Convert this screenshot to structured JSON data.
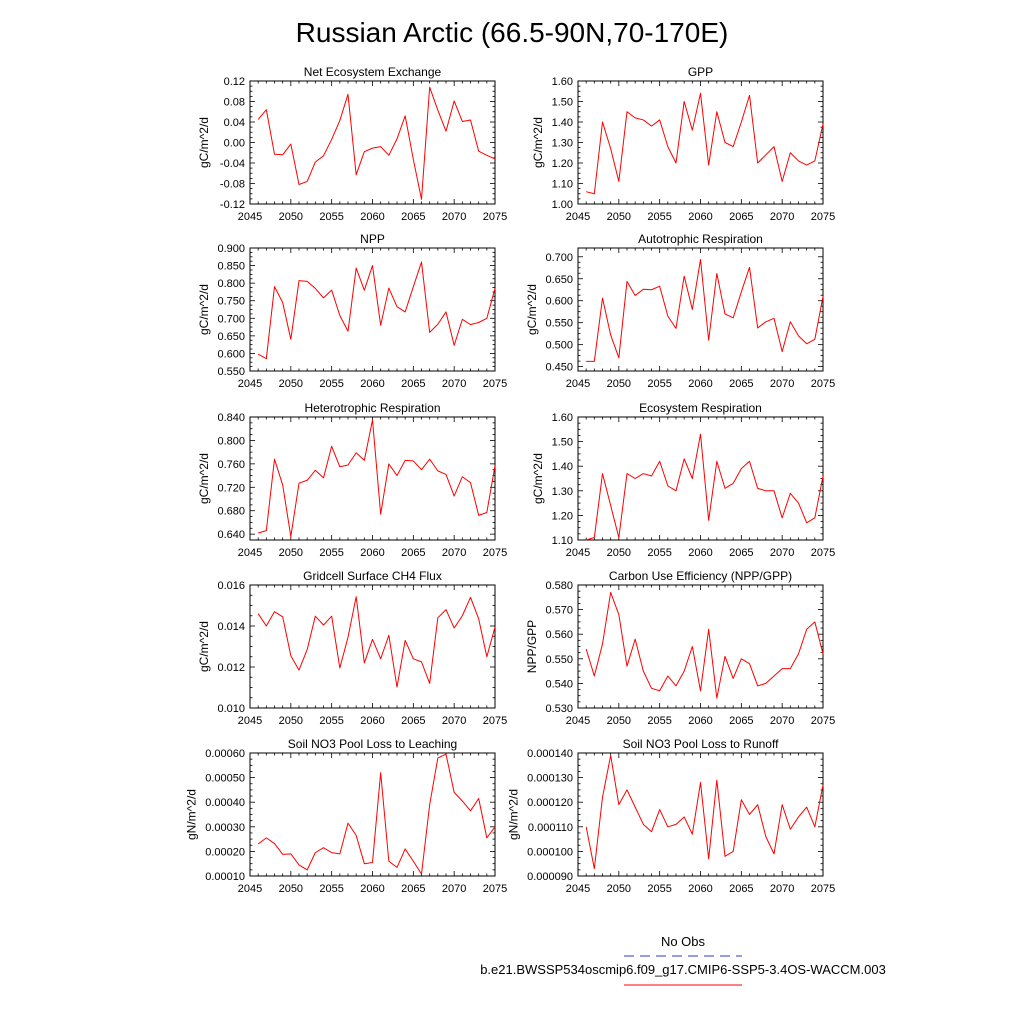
{
  "page_title": "Russian Arctic (66.5-90N,70-170E)",
  "legend": {
    "obs_label": "No Obs",
    "obs_color": "#3333cc",
    "model_label": "b.e21.BWSSP534oscmip6.f09_g17.CMIP6-SSP5-3.4OS-WACCM.003",
    "model_color": "#ff0000"
  },
  "chart_data": [
    {
      "type": "line",
      "title": "Net Ecosystem Exchange",
      "ylabel": "gC/m^2/d",
      "xlim": [
        2045,
        2075
      ],
      "ylim": [
        -0.12,
        0.12
      ],
      "xticks": [
        "2045",
        "2050",
        "2055",
        "2060",
        "2065",
        "2070",
        "2075"
      ],
      "yticks": [
        "-0.12",
        "-0.08",
        "-0.04",
        "0.00",
        "0.04",
        "0.08",
        "0.12"
      ],
      "x": [
        2046,
        2047,
        2048,
        2049,
        2050,
        2051,
        2052,
        2053,
        2054,
        2055,
        2056,
        2057,
        2058,
        2059,
        2060,
        2061,
        2062,
        2063,
        2064,
        2065,
        2066,
        2067,
        2068,
        2069,
        2070,
        2071,
        2072,
        2073,
        2074,
        2075
      ],
      "values": [
        0.045,
        0.064,
        -0.023,
        -0.024,
        -0.003,
        -0.082,
        -0.076,
        -0.038,
        -0.026,
        0.006,
        0.043,
        0.094,
        -0.063,
        -0.018,
        -0.011,
        -0.008,
        -0.025,
        0.007,
        0.052,
        -0.033,
        -0.111,
        0.108,
        0.063,
        0.022,
        0.081,
        0.041,
        0.044,
        -0.017,
        -0.025,
        -0.032
      ],
      "color": "#ff0000"
    },
    {
      "type": "line",
      "title": "GPP",
      "ylabel": "gC/m^2/d",
      "xlim": [
        2045,
        2075
      ],
      "ylim": [
        1.0,
        1.6
      ],
      "xticks": [
        "2045",
        "2050",
        "2055",
        "2060",
        "2065",
        "2070",
        "2075"
      ],
      "yticks": [
        "1.00",
        "1.10",
        "1.20",
        "1.30",
        "1.40",
        "1.50",
        "1.60"
      ],
      "x": [
        2046,
        2047,
        2048,
        2049,
        2050,
        2051,
        2052,
        2053,
        2054,
        2055,
        2056,
        2057,
        2058,
        2059,
        2060,
        2061,
        2062,
        2063,
        2064,
        2065,
        2066,
        2067,
        2068,
        2069,
        2070,
        2071,
        2072,
        2073,
        2074,
        2075
      ],
      "values": [
        1.06,
        1.05,
        1.4,
        1.27,
        1.11,
        1.45,
        1.42,
        1.41,
        1.38,
        1.41,
        1.28,
        1.2,
        1.5,
        1.36,
        1.54,
        1.19,
        1.45,
        1.3,
        1.28,
        1.4,
        1.53,
        1.2,
        1.24,
        1.28,
        1.11,
        1.25,
        1.21,
        1.19,
        1.21,
        1.39
      ],
      "color": "#ff0000"
    },
    {
      "type": "line",
      "title": "NPP",
      "ylabel": "gC/m^2/d",
      "xlim": [
        2045,
        2075
      ],
      "ylim": [
        0.55,
        0.9
      ],
      "xticks": [
        "2045",
        "2050",
        "2055",
        "2060",
        "2065",
        "2070",
        "2075"
      ],
      "yticks": [
        "0.550",
        "0.600",
        "0.650",
        "0.700",
        "0.750",
        "0.800",
        "0.850",
        "0.900"
      ],
      "x": [
        2046,
        2047,
        2048,
        2049,
        2050,
        2051,
        2052,
        2053,
        2054,
        2055,
        2056,
        2057,
        2058,
        2059,
        2060,
        2061,
        2062,
        2063,
        2064,
        2065,
        2066,
        2067,
        2068,
        2069,
        2070,
        2071,
        2072,
        2073,
        2074,
        2075
      ],
      "values": [
        0.598,
        0.585,
        0.79,
        0.745,
        0.64,
        0.807,
        0.805,
        0.785,
        0.758,
        0.78,
        0.708,
        0.663,
        0.843,
        0.78,
        0.85,
        0.68,
        0.786,
        0.733,
        0.718,
        0.79,
        0.86,
        0.66,
        0.683,
        0.718,
        0.623,
        0.697,
        0.682,
        0.688,
        0.7,
        0.785
      ],
      "color": "#ff0000"
    },
    {
      "type": "line",
      "title": "Autotrophic Respiration",
      "ylabel": "gC/m^2/d",
      "xlim": [
        2045,
        2075
      ],
      "ylim": [
        0.44,
        0.72
      ],
      "xticks": [
        "2045",
        "2050",
        "2055",
        "2060",
        "2065",
        "2070",
        "2075"
      ],
      "yticks": [
        "0.450",
        "0.500",
        "0.550",
        "0.600",
        "0.650",
        "0.700"
      ],
      "x": [
        2046,
        2047,
        2048,
        2049,
        2050,
        2051,
        2052,
        2053,
        2054,
        2055,
        2056,
        2057,
        2058,
        2059,
        2060,
        2061,
        2062,
        2063,
        2064,
        2065,
        2066,
        2067,
        2068,
        2069,
        2070,
        2071,
        2072,
        2073,
        2074,
        2075
      ],
      "values": [
        0.462,
        0.462,
        0.606,
        0.522,
        0.47,
        0.644,
        0.612,
        0.626,
        0.625,
        0.633,
        0.565,
        0.537,
        0.656,
        0.58,
        0.694,
        0.51,
        0.662,
        0.57,
        0.561,
        0.62,
        0.676,
        0.538,
        0.552,
        0.56,
        0.484,
        0.552,
        0.52,
        0.502,
        0.512,
        0.61
      ],
      "color": "#ff0000"
    },
    {
      "type": "line",
      "title": "Heterotrophic Respiration",
      "ylabel": "gC/m^2/d",
      "xlim": [
        2045,
        2075
      ],
      "ylim": [
        0.63,
        0.84
      ],
      "xticks": [
        "2045",
        "2050",
        "2055",
        "2060",
        "2065",
        "2070",
        "2075"
      ],
      "yticks": [
        "0.640",
        "0.680",
        "0.720",
        "0.760",
        "0.800",
        "0.840"
      ],
      "x": [
        2046,
        2047,
        2048,
        2049,
        2050,
        2051,
        2052,
        2053,
        2054,
        2055,
        2056,
        2057,
        2058,
        2059,
        2060,
        2061,
        2062,
        2063,
        2064,
        2065,
        2066,
        2067,
        2068,
        2069,
        2070,
        2071,
        2072,
        2073,
        2074,
        2075
      ],
      "values": [
        0.642,
        0.646,
        0.768,
        0.724,
        0.636,
        0.727,
        0.732,
        0.749,
        0.736,
        0.79,
        0.755,
        0.758,
        0.779,
        0.766,
        0.835,
        0.674,
        0.76,
        0.74,
        0.766,
        0.765,
        0.75,
        0.768,
        0.748,
        0.742,
        0.705,
        0.738,
        0.728,
        0.672,
        0.677,
        0.757
      ],
      "color": "#ff0000"
    },
    {
      "type": "line",
      "title": "Ecosystem Respiration",
      "ylabel": "gC/m^2/d",
      "xlim": [
        2045,
        2075
      ],
      "ylim": [
        1.1,
        1.6
      ],
      "xticks": [
        "2045",
        "2050",
        "2055",
        "2060",
        "2065",
        "2070",
        "2075"
      ],
      "yticks": [
        "1.10",
        "1.20",
        "1.30",
        "1.40",
        "1.50",
        "1.60"
      ],
      "x": [
        2046,
        2047,
        2048,
        2049,
        2050,
        2051,
        2052,
        2053,
        2054,
        2055,
        2056,
        2057,
        2058,
        2059,
        2060,
        2061,
        2062,
        2063,
        2064,
        2065,
        2066,
        2067,
        2068,
        2069,
        2070,
        2071,
        2072,
        2073,
        2074,
        2075
      ],
      "values": [
        1.1,
        1.11,
        1.37,
        1.24,
        1.11,
        1.37,
        1.35,
        1.37,
        1.36,
        1.42,
        1.32,
        1.3,
        1.43,
        1.35,
        1.53,
        1.18,
        1.42,
        1.31,
        1.33,
        1.39,
        1.42,
        1.31,
        1.3,
        1.3,
        1.19,
        1.29,
        1.25,
        1.17,
        1.19,
        1.36
      ],
      "color": "#ff0000"
    },
    {
      "type": "line",
      "title": "Gridcell Surface CH4 Flux",
      "ylabel": "gC/m^2/d",
      "xlim": [
        2045,
        2075
      ],
      "ylim": [
        0.01,
        0.016
      ],
      "xticks": [
        "2045",
        "2050",
        "2055",
        "2060",
        "2065",
        "2070",
        "2075"
      ],
      "yticks": [
        "0.010",
        "0.012",
        "0.014",
        "0.016"
      ],
      "x": [
        2046,
        2047,
        2048,
        2049,
        2050,
        2051,
        2052,
        2053,
        2054,
        2055,
        2056,
        2057,
        2058,
        2059,
        2060,
        2061,
        2062,
        2063,
        2064,
        2065,
        2066,
        2067,
        2068,
        2069,
        2070,
        2071,
        2072,
        2073,
        2074,
        2075
      ],
      "values": [
        0.0146,
        0.014,
        0.0147,
        0.01445,
        0.01255,
        0.01185,
        0.01285,
        0.01448,
        0.01405,
        0.01448,
        0.01195,
        0.01345,
        0.01543,
        0.0122,
        0.01335,
        0.0124,
        0.01355,
        0.01102,
        0.0133,
        0.0124,
        0.01225,
        0.0112,
        0.0144,
        0.0148,
        0.0139,
        0.0145,
        0.0154,
        0.01435,
        0.0125,
        0.01395
      ],
      "color": "#ff0000"
    },
    {
      "type": "line",
      "title": "Carbon Use Efficiency (NPP/GPP)",
      "ylabel": "NPP/GPP",
      "xlim": [
        2045,
        2075
      ],
      "ylim": [
        0.53,
        0.58
      ],
      "xticks": [
        "2045",
        "2050",
        "2055",
        "2060",
        "2065",
        "2070",
        "2075"
      ],
      "yticks": [
        "0.530",
        "0.540",
        "0.550",
        "0.560",
        "0.570",
        "0.580"
      ],
      "x": [
        2046,
        2047,
        2048,
        2049,
        2050,
        2051,
        2052,
        2053,
        2054,
        2055,
        2056,
        2057,
        2058,
        2059,
        2060,
        2061,
        2062,
        2063,
        2064,
        2065,
        2066,
        2067,
        2068,
        2069,
        2070,
        2071,
        2072,
        2073,
        2074,
        2075
      ],
      "values": [
        0.554,
        0.543,
        0.556,
        0.577,
        0.568,
        0.547,
        0.558,
        0.545,
        0.538,
        0.537,
        0.543,
        0.539,
        0.545,
        0.555,
        0.537,
        0.562,
        0.534,
        0.551,
        0.542,
        0.55,
        0.548,
        0.539,
        0.54,
        0.543,
        0.546,
        0.546,
        0.552,
        0.562,
        0.565,
        0.552
      ],
      "color": "#ff0000"
    },
    {
      "type": "line",
      "title": "Soil NO3 Pool Loss to Leaching",
      "ylabel": "gN/m^2/d",
      "xlim": [
        2045,
        2075
      ],
      "ylim": [
        0.0001,
        0.0006
      ],
      "xticks": [
        "2045",
        "2050",
        "2055",
        "2060",
        "2065",
        "2070",
        "2075"
      ],
      "yticks": [
        "0.00010",
        "0.00020",
        "0.00030",
        "0.00040",
        "0.00050",
        "0.00060"
      ],
      "x": [
        2046,
        2047,
        2048,
        2049,
        2050,
        2051,
        2052,
        2053,
        2054,
        2055,
        2056,
        2057,
        2058,
        2059,
        2060,
        2061,
        2062,
        2063,
        2064,
        2065,
        2066,
        2067,
        2068,
        2069,
        2070,
        2071,
        2072,
        2073,
        2074,
        2075
      ],
      "values": [
        0.00023,
        0.000255,
        0.000232,
        0.000188,
        0.00019,
        0.000145,
        0.000125,
        0.000195,
        0.000215,
        0.000195,
        0.00019,
        0.000315,
        0.000265,
        0.00015,
        0.000155,
        0.00052,
        0.00016,
        0.000135,
        0.00021,
        0.00016,
        0.000108,
        0.00039,
        0.00058,
        0.000595,
        0.00044,
        0.000405,
        0.000365,
        0.000415,
        0.000255,
        0.0003
      ],
      "color": "#ff0000"
    },
    {
      "type": "line",
      "title": "Soil NO3 Pool Loss to Runoff",
      "ylabel": "gN/m^2/d",
      "xlim": [
        2045,
        2075
      ],
      "ylim": [
        9e-05,
        0.00014
      ],
      "xticks": [
        "2045",
        "2050",
        "2055",
        "2060",
        "2065",
        "2070",
        "2075"
      ],
      "yticks": [
        "0.000090",
        "0.000100",
        "0.000110",
        "0.000120",
        "0.000130",
        "0.000140"
      ],
      "x": [
        2046,
        2047,
        2048,
        2049,
        2050,
        2051,
        2052,
        2053,
        2054,
        2055,
        2056,
        2057,
        2058,
        2059,
        2060,
        2061,
        2062,
        2063,
        2064,
        2065,
        2066,
        2067,
        2068,
        2069,
        2070,
        2071,
        2072,
        2073,
        2074,
        2075
      ],
      "values": [
        0.00011,
        9.3e-05,
        0.000122,
        0.000139,
        0.000119,
        0.000125,
        0.000118,
        0.000111,
        0.000108,
        0.000117,
        0.00011,
        0.000111,
        0.000114,
        0.000107,
        0.000128,
        9.7e-05,
        0.000129,
        9.8e-05,
        0.0001,
        0.000121,
        0.000115,
        0.000119,
        0.000106,
        9.9e-05,
        0.000119,
        0.000109,
        0.000114,
        0.000118,
        0.00011,
        0.000127
      ],
      "color": "#ff0000"
    }
  ]
}
